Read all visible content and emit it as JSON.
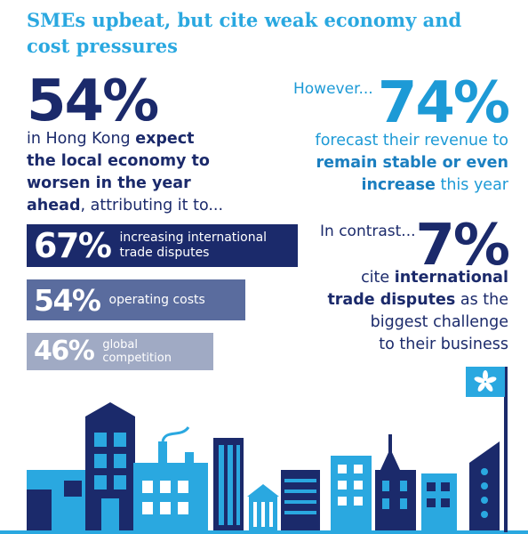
{
  "title": "SMEs upbeat, but cite weak economy and cost pressures",
  "left": {
    "big_pct": "54%",
    "line1_pre": "in Hong Kong ",
    "line1_bold": "expect",
    "line2_bold": "the local economy to",
    "line3_bold": "worsen in the year",
    "line4_bold": "ahead",
    "line4_rest": ", attributing it to..."
  },
  "bars": [
    {
      "pct": "67%",
      "label_line1": "increasing international",
      "label_line2": "trade disputes",
      "color": "#1b2a6b"
    },
    {
      "pct": "54%",
      "label_line1": "operating costs",
      "label_line2": "",
      "color": "#5a6c9e"
    },
    {
      "pct": "46%",
      "label_line1": "global",
      "label_line2": "competition",
      "color": "#a0aac4"
    }
  ],
  "right_top": {
    "lead": "However...",
    "big_pct": "74%",
    "line1": "forecast their revenue to",
    "line2_bold": "remain stable or even",
    "line3_bold": "increase",
    "line3_rest": " this year"
  },
  "right_bottom": {
    "lead": "In contrast...",
    "big_pct": "7%",
    "line1_pre": "cite ",
    "line1_bold": "international",
    "line2_bold": "trade disputes",
    "line2_rest": " as the",
    "line3": "biggest challenge",
    "line4": "to their business"
  },
  "colors": {
    "navy": "#1b2a6b",
    "accent_blue": "#2aa8e0",
    "mid_blue": "#1d9ad6",
    "building_light": "#2aa8e0",
    "building_dark": "#1b2a6b",
    "flag": "#2aa8e0"
  },
  "icons": [
    "hong-kong-flag-icon",
    "city-skyline-illustration"
  ]
}
